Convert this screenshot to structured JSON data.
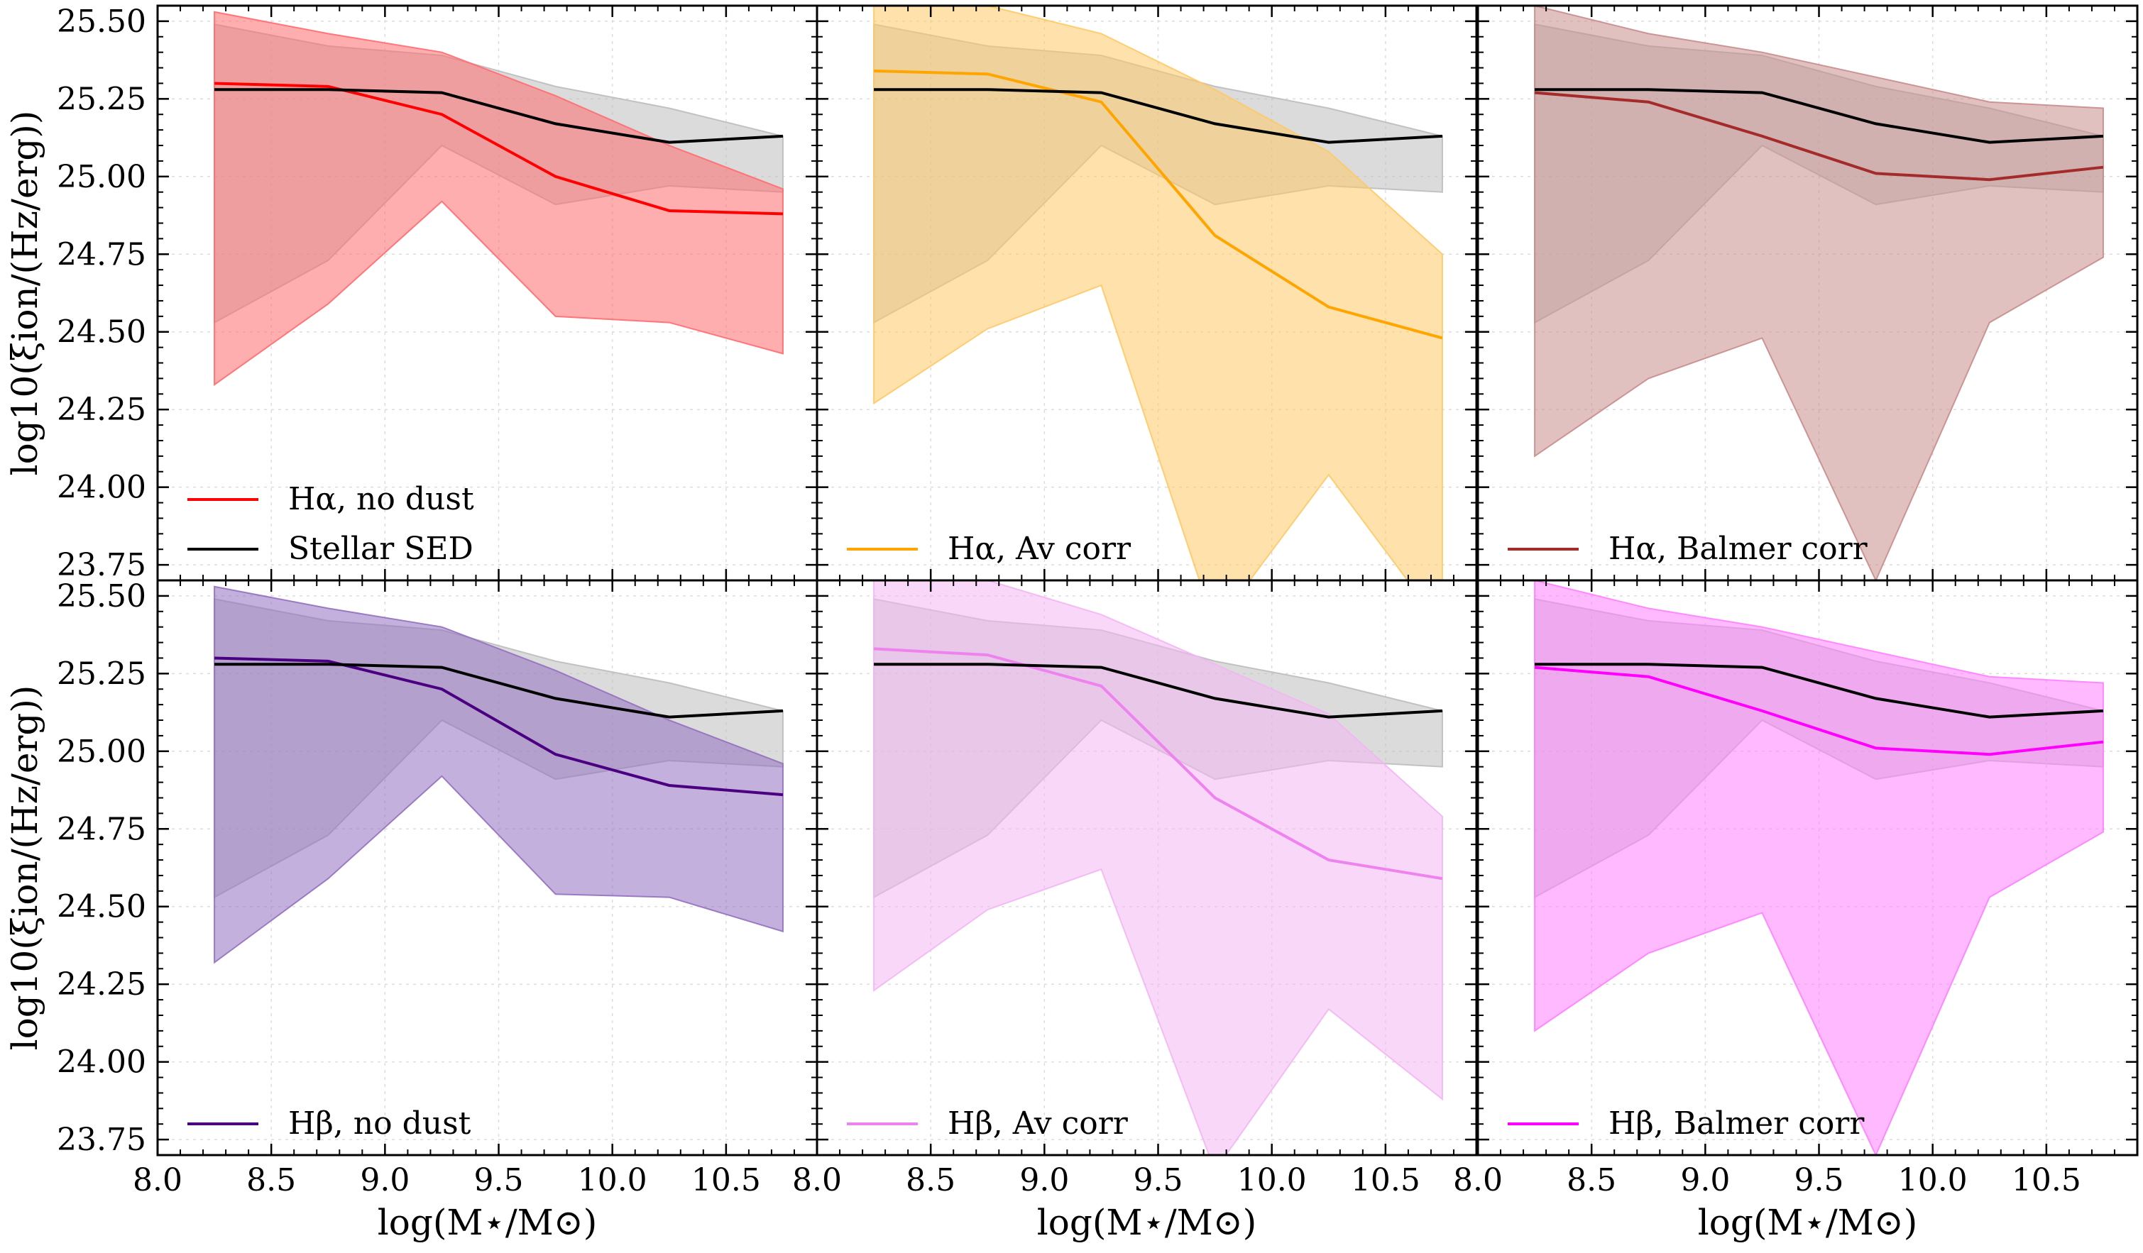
{
  "figure": {
    "xlabel": "log(M⋆/M⊙)",
    "ylabel": "log10(ξion/(Hz/erg))",
    "xlim": [
      8.0,
      10.9
    ],
    "ylim": [
      23.7,
      25.55
    ],
    "xticks": [
      8.0,
      8.5,
      9.0,
      9.5,
      10.0,
      10.5
    ],
    "xtick_labels": [
      "8.0",
      "8.5",
      "9.0",
      "9.5",
      "10.0",
      "10.5"
    ],
    "yticks": [
      23.75,
      24.0,
      24.25,
      24.5,
      24.75,
      25.0,
      25.25,
      25.5
    ],
    "ytick_labels": [
      "23.75",
      "24.00",
      "24.25",
      "24.50",
      "24.75",
      "25.00",
      "25.25",
      "25.50"
    ],
    "grid": true
  },
  "chart_data": [
    {
      "type": "line",
      "panel": "top-left",
      "x": [
        8.25,
        8.75,
        9.25,
        9.75,
        10.25,
        10.75
      ],
      "series": [
        {
          "name": "Stellar SED",
          "color": "#000000",
          "values": [
            25.28,
            25.28,
            25.27,
            25.17,
            25.11,
            25.13
          ],
          "band_low": [
            24.53,
            24.73,
            25.1,
            24.91,
            24.97,
            24.95
          ],
          "band_high": [
            25.49,
            25.42,
            25.39,
            25.29,
            25.22,
            25.13
          ],
          "band_color": "#bdbdbd"
        },
        {
          "name": "Hα, no dust",
          "color": "#ff0000",
          "values": [
            25.3,
            25.29,
            25.2,
            25.0,
            24.89,
            24.88
          ],
          "band_low": [
            24.33,
            24.59,
            24.92,
            24.55,
            24.53,
            24.43
          ],
          "band_high": [
            25.53,
            25.46,
            25.4,
            25.26,
            25.1,
            24.96
          ],
          "band_color": "#ff6b70"
        }
      ],
      "legend": [
        "Hα, no dust",
        "Stellar SED"
      ]
    },
    {
      "type": "line",
      "panel": "top-middle",
      "x": [
        8.25,
        8.75,
        9.25,
        9.75,
        10.25,
        10.75
      ],
      "series": [
        {
          "name": "Stellar SED",
          "color": "#000000",
          "values": [
            25.28,
            25.28,
            25.27,
            25.17,
            25.11,
            25.13
          ],
          "band_low": [
            24.53,
            24.73,
            25.1,
            24.91,
            24.97,
            24.95
          ],
          "band_high": [
            25.49,
            25.42,
            25.39,
            25.29,
            25.22,
            25.13
          ],
          "band_color": "#bdbdbd"
        },
        {
          "name": "Hα, Av corr",
          "color": "#ffa500",
          "values": [
            25.34,
            25.33,
            25.24,
            24.81,
            24.58,
            24.48
          ],
          "band_low": [
            24.27,
            24.51,
            24.65,
            23.55,
            24.04,
            23.55
          ],
          "band_high": [
            25.55,
            25.55,
            25.46,
            25.28,
            25.08,
            24.75
          ],
          "band_color": "#ffc966"
        }
      ],
      "legend": [
        "Hα, Av corr"
      ]
    },
    {
      "type": "line",
      "panel": "top-right",
      "x": [
        8.25,
        8.75,
        9.25,
        9.75,
        10.25,
        10.75
      ],
      "series": [
        {
          "name": "Stellar SED",
          "color": "#000000",
          "values": [
            25.28,
            25.28,
            25.27,
            25.17,
            25.11,
            25.13
          ],
          "band_low": [
            24.53,
            24.73,
            25.1,
            24.91,
            24.97,
            24.95
          ],
          "band_high": [
            25.49,
            25.42,
            25.39,
            25.29,
            25.22,
            25.13
          ],
          "band_color": "#bdbdbd"
        },
        {
          "name": "Hα, Balmer corr",
          "color": "#a52a2a",
          "values": [
            25.27,
            25.24,
            25.13,
            25.01,
            24.99,
            25.03
          ],
          "band_low": [
            24.1,
            24.35,
            24.48,
            23.7,
            24.53,
            24.74
          ],
          "band_high": [
            25.55,
            25.46,
            25.4,
            25.32,
            25.24,
            25.22
          ],
          "band_color": "#c98c8c"
        }
      ],
      "legend": [
        "Hα, Balmer corr"
      ]
    },
    {
      "type": "line",
      "panel": "bottom-left",
      "x": [
        8.25,
        8.75,
        9.25,
        9.75,
        10.25,
        10.75
      ],
      "series": [
        {
          "name": "Stellar SED",
          "color": "#000000",
          "values": [
            25.28,
            25.28,
            25.27,
            25.17,
            25.11,
            25.13
          ],
          "band_low": [
            24.53,
            24.73,
            25.1,
            24.91,
            24.97,
            24.95
          ],
          "band_high": [
            25.49,
            25.42,
            25.39,
            25.29,
            25.22,
            25.13
          ],
          "band_color": "#bdbdbd"
        },
        {
          "name": "Hβ, no dust",
          "color": "#4b0082",
          "values": [
            25.3,
            25.29,
            25.2,
            24.99,
            24.89,
            24.86
          ],
          "band_low": [
            24.32,
            24.59,
            24.92,
            24.54,
            24.53,
            24.42
          ],
          "band_high": [
            25.53,
            25.46,
            25.4,
            25.26,
            25.1,
            24.96
          ],
          "band_color": "#9370c0"
        }
      ],
      "legend": [
        "Hβ, no dust"
      ]
    },
    {
      "type": "line",
      "panel": "bottom-middle",
      "x": [
        8.25,
        8.75,
        9.25,
        9.75,
        10.25,
        10.75
      ],
      "series": [
        {
          "name": "Stellar SED",
          "color": "#000000",
          "values": [
            25.28,
            25.28,
            25.27,
            25.17,
            25.11,
            25.13
          ],
          "band_low": [
            24.53,
            24.73,
            25.1,
            24.91,
            24.97,
            24.95
          ],
          "band_high": [
            25.49,
            25.42,
            25.39,
            25.29,
            25.22,
            25.13
          ],
          "band_color": "#bdbdbd"
        },
        {
          "name": "Hβ, Av corr",
          "color": "#ee82ee",
          "values": [
            25.33,
            25.31,
            25.21,
            24.85,
            24.65,
            24.59
          ],
          "band_low": [
            24.23,
            24.49,
            24.62,
            23.65,
            24.17,
            23.88
          ],
          "band_high": [
            25.55,
            25.55,
            25.44,
            25.28,
            25.12,
            24.79
          ],
          "band_color": "#f3b6f3"
        }
      ],
      "legend": [
        "Hβ, Av corr"
      ]
    },
    {
      "type": "line",
      "panel": "bottom-right",
      "x": [
        8.25,
        8.75,
        9.25,
        9.75,
        10.25,
        10.75
      ],
      "series": [
        {
          "name": "Stellar SED",
          "color": "#000000",
          "values": [
            25.28,
            25.28,
            25.27,
            25.17,
            25.11,
            25.13
          ],
          "band_low": [
            24.53,
            24.73,
            25.1,
            24.91,
            24.97,
            24.95
          ],
          "band_high": [
            25.49,
            25.42,
            25.39,
            25.29,
            25.22,
            25.13
          ],
          "band_color": "#bdbdbd"
        },
        {
          "name": "Hβ, Balmer corr",
          "color": "#ff00ff",
          "values": [
            25.27,
            25.24,
            25.13,
            25.01,
            24.99,
            25.03
          ],
          "band_low": [
            24.1,
            24.35,
            24.48,
            23.7,
            24.53,
            24.74
          ],
          "band_high": [
            25.55,
            25.46,
            25.4,
            25.32,
            25.24,
            25.22
          ],
          "band_color": "#ff80ff"
        }
      ],
      "legend": [
        "Hβ, Balmer corr"
      ]
    }
  ]
}
